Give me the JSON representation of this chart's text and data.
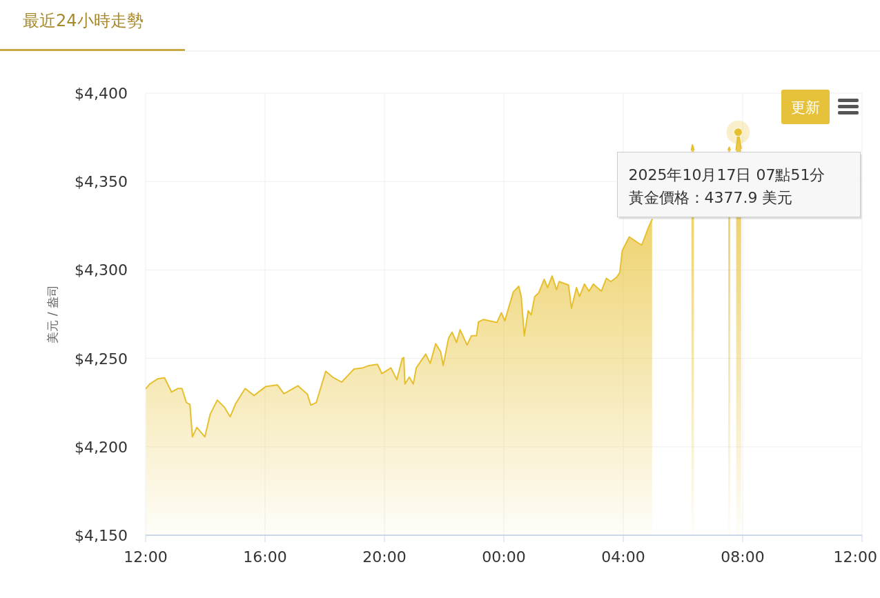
{
  "chart_data": {
    "type": "area",
    "title": "最近24小時走勢",
    "ylabel": "美元 / 盎司",
    "xlim": [
      "2025-10-16T12:00",
      "2025-10-17T12:00"
    ],
    "ylim": [
      4150,
      4400
    ],
    "xticks": [
      {
        "value": "2025-10-16T12:00",
        "label": "12:00"
      },
      {
        "value": "2025-10-16T16:00",
        "label": "16:00"
      },
      {
        "value": "2025-10-16T20:00",
        "label": "20:00"
      },
      {
        "value": "2025-10-17T00:00",
        "label": "00:00"
      },
      {
        "value": "2025-10-17T04:00",
        "label": "04:00"
      },
      {
        "value": "2025-10-17T08:00",
        "label": "08:00"
      },
      {
        "value": "2025-10-17T12:00",
        "label": "12:00"
      }
    ],
    "yticks": [
      {
        "value": 4150,
        "label": "$4,150"
      },
      {
        "value": 4200,
        "label": "$4,200"
      },
      {
        "value": 4250,
        "label": "$4,250"
      },
      {
        "value": 4300,
        "label": "$4,300"
      },
      {
        "value": 4350,
        "label": "$4,350"
      },
      {
        "value": 4400,
        "label": "$4,400"
      }
    ],
    "grid": true,
    "series": [
      {
        "color": "#e6bf2e",
        "x": [
          "2025-10-16T12:01",
          "2025-10-16T12:08",
          "2025-10-16T12:24",
          "2025-10-16T12:38",
          "2025-10-16T12:52",
          "2025-10-16T13:05",
          "2025-10-16T13:13",
          "2025-10-16T13:22",
          "2025-10-16T13:29",
          "2025-10-16T13:34",
          "2025-10-16T13:43",
          "2025-10-16T13:59",
          "2025-10-16T14:10",
          "2025-10-16T14:24",
          "2025-10-16T14:38",
          "2025-10-16T14:50",
          "2025-10-16T15:01",
          "2025-10-16T15:20",
          "2025-10-16T15:38",
          "2025-10-16T16:01",
          "2025-10-16T16:25",
          "2025-10-16T16:38",
          "2025-10-16T17:06",
          "2025-10-16T17:25",
          "2025-10-16T17:32",
          "2025-10-16T17:43",
          "2025-10-16T18:02",
          "2025-10-16T18:16",
          "2025-10-16T18:34",
          "2025-10-16T18:59",
          "2025-10-16T19:16",
          "2025-10-16T19:29",
          "2025-10-16T19:46",
          "2025-10-16T19:55",
          "2025-10-16T20:13",
          "2025-10-16T20:25",
          "2025-10-16T20:36",
          "2025-10-16T20:39",
          "2025-10-16T20:41",
          "2025-10-16T20:50",
          "2025-10-16T20:58",
          "2025-10-16T21:04",
          "2025-10-16T21:23",
          "2025-10-16T21:32",
          "2025-10-16T21:43",
          "2025-10-16T21:53",
          "2025-10-16T21:58",
          "2025-10-16T22:09",
          "2025-10-16T22:16",
          "2025-10-16T22:25",
          "2025-10-16T22:32",
          "2025-10-16T22:46",
          "2025-10-16T22:55",
          "2025-10-16T23:05",
          "2025-10-16T23:09",
          "2025-10-16T23:19",
          "2025-10-16T23:46",
          "2025-10-16T23:55",
          "2025-10-17T00:02",
          "2025-10-17T00:19",
          "2025-10-17T00:30",
          "2025-10-17T00:35",
          "2025-10-17T00:41",
          "2025-10-17T00:49",
          "2025-10-17T00:55",
          "2025-10-17T01:02",
          "2025-10-17T01:10",
          "2025-10-17T01:21",
          "2025-10-17T01:28",
          "2025-10-17T01:37",
          "2025-10-17T01:46",
          "2025-10-17T01:51",
          "2025-10-17T02:10",
          "2025-10-17T02:16",
          "2025-10-17T02:26",
          "2025-10-17T02:32",
          "2025-10-17T02:42",
          "2025-10-17T02:51",
          "2025-10-17T03:00",
          "2025-10-17T03:16",
          "2025-10-17T03:26",
          "2025-10-17T03:35",
          "2025-10-17T03:47",
          "2025-10-17T03:53",
          "2025-10-17T03:58",
          "2025-10-17T04:12",
          "2025-10-17T04:37",
          "2025-10-17T04:52",
          "2025-10-17T04:58"
        ],
        "values": [
          4233,
          4235.5,
          4238.4,
          4239,
          4231,
          4233,
          4233,
          4225,
          4224,
          4205.6,
          4211,
          4205.6,
          4218.6,
          4226.4,
          4222.5,
          4217,
          4224.5,
          4233,
          4229,
          4234,
          4235,
          4230,
          4234.5,
          4229.7,
          4223.6,
          4225,
          4242.7,
          4239.4,
          4236.6,
          4244,
          4244.6,
          4246,
          4246.6,
          4241.4,
          4244.6,
          4238,
          4250,
          4250.5,
          4235.5,
          4239.4,
          4235.5,
          4244.6,
          4252.4,
          4247.2,
          4258.3,
          4253.7,
          4246,
          4261.5,
          4264.8,
          4259,
          4266.2,
          4257.6,
          4262.8,
          4262.8,
          4270.6,
          4272,
          4270.3,
          4275.8,
          4271.3,
          4287.5,
          4290.8,
          4285,
          4262.8,
          4277,
          4274.5,
          4285,
          4287,
          4294.7,
          4290,
          4296.6,
          4288.8,
          4293.4,
          4291.5,
          4278.4,
          4290,
          4285,
          4292,
          4288,
          4292,
          4288,
          4295.3,
          4293.4,
          4296,
          4298.6,
          4311,
          4318.7,
          4314,
          4325,
          4328.6
        ]
      },
      {
        "color": "#e6bf2e",
        "x": [
          "2025-10-17T06:17",
          "2025-10-17T06:19",
          "2025-10-17T06:22"
        ],
        "values": [
          4368,
          4370.7,
          4368
        ]
      },
      {
        "color": "#e6bf2e",
        "x": [
          "2025-10-17T07:31",
          "2025-10-17T07:33",
          "2025-10-17T07:35"
        ],
        "values": [
          4368,
          4369.4,
          4368
        ]
      },
      {
        "color": "#e6bf2e",
        "x": [
          "2025-10-17T07:47",
          "2025-10-17T07:51",
          "2025-10-17T07:57"
        ],
        "values": [
          4368,
          4377.9,
          4368.8
        ]
      }
    ],
    "annotations": [
      {
        "text": "2025年10月17日 07點51分黃金價格：4377.9 美元",
        "x": "2025-10-17T07:51",
        "y": 4377.9
      },
      "更新"
    ]
  }
}
